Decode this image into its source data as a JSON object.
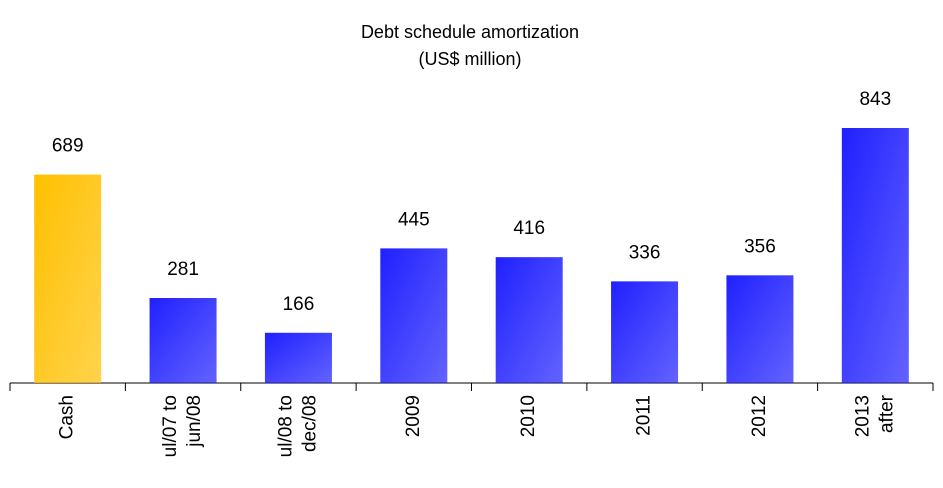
{
  "chart_data": {
    "type": "bar",
    "title": "Debt schedule amortization",
    "subtitle": "(US$ million)",
    "categories": [
      "Cash",
      "ul/07 to\njun/08",
      "ul/08 to\ndec/08",
      "2009",
      "2010",
      "2011",
      "2012",
      "2013\nafter"
    ],
    "values": [
      689,
      281,
      166,
      445,
      416,
      336,
      356,
      843
    ],
    "colors": [
      "#ffc000",
      "#2020ff",
      "#2020ff",
      "#2020ff",
      "#2020ff",
      "#2020ff",
      "#2020ff",
      "#2020ff"
    ]
  }
}
